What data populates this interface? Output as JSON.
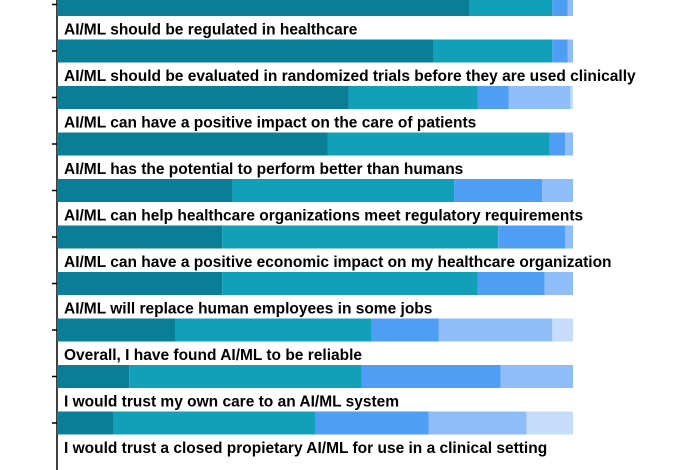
{
  "chart_data": {
    "type": "bar",
    "orientation": "horizontal",
    "stacked": true,
    "xlim": [
      0,
      100
    ],
    "grid": false,
    "legend": "none",
    "colors": [
      "#0a7d97",
      "#12a0b8",
      "#4e9ef5",
      "#8fbdf7",
      "#c6dcfb"
    ],
    "rows": [
      {
        "label": "",
        "values": [
          80,
          16,
          3,
          1,
          0
        ]
      },
      {
        "label": "AI/ML should be regulated in healthcare",
        "values": [
          73,
          23,
          3,
          1,
          0
        ]
      },
      {
        "label": "AI/ML should be evaluated in randomized trials before they are used clinically",
        "values": [
          56.5,
          25,
          6,
          12,
          0.5
        ]
      },
      {
        "label": "AI/ML can have a positive impact on the care of patients",
        "values": [
          52.5,
          43,
          3,
          1.5,
          0
        ]
      },
      {
        "label": "AI/ML has the potential to perform better than humans",
        "values": [
          34,
          43,
          17,
          6,
          0
        ]
      },
      {
        "label": "AI/ML can help healthcare organizations meet regulatory requirements",
        "values": [
          32,
          53.5,
          13,
          1.5,
          0
        ]
      },
      {
        "label": "AI/ML can have a positive economic impact on my healthcare organization",
        "values": [
          32,
          49.5,
          13,
          5.5,
          0
        ]
      },
      {
        "label": "AI/ML will replace human employees in some jobs",
        "values": [
          23,
          38,
          13,
          22,
          4
        ]
      },
      {
        "label": "Overall, I have found AI/ML to be reliable",
        "values": [
          14,
          45,
          27,
          14,
          0
        ]
      },
      {
        "label": "I would trust my own care to an AI/ML system",
        "values": [
          11,
          39,
          22,
          19,
          9
        ]
      },
      {
        "label": "I would trust a closed propietary AI/ML for use in a clinical setting",
        "values": []
      }
    ]
  }
}
